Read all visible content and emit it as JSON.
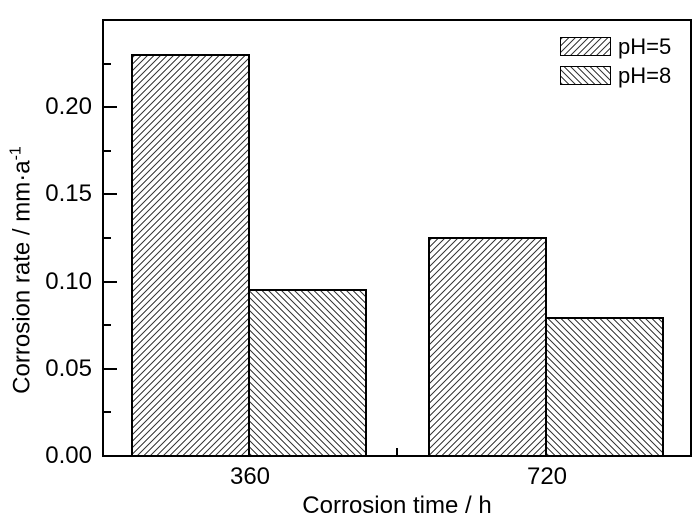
{
  "chart_data": {
    "type": "bar",
    "categories": [
      "360",
      "720"
    ],
    "series": [
      {
        "name": "pH=5",
        "hatch": "forward",
        "values": [
          0.23,
          0.125
        ]
      },
      {
        "name": "pH=8",
        "hatch": "backward",
        "values": [
          0.095,
          0.079
        ]
      }
    ],
    "title": "",
    "xlabel": "Corrosion time / h",
    "ylabel": "Corrosion rate / mm·a",
    "ylabel_sup": "-1",
    "ylim": [
      0,
      0.25
    ],
    "yticks": [
      0,
      0.05,
      0.1,
      0.15,
      0.2
    ],
    "ytick_labels": [
      "0.00",
      "0.05",
      "0.10",
      "0.15",
      "0.20"
    ],
    "ytick_minor_offset": 0.025,
    "legend_position": "top-right",
    "grid": false,
    "axis_color": "#000000",
    "bar_fill": "#ffffff",
    "hatch_color": "#3c3c3c"
  }
}
